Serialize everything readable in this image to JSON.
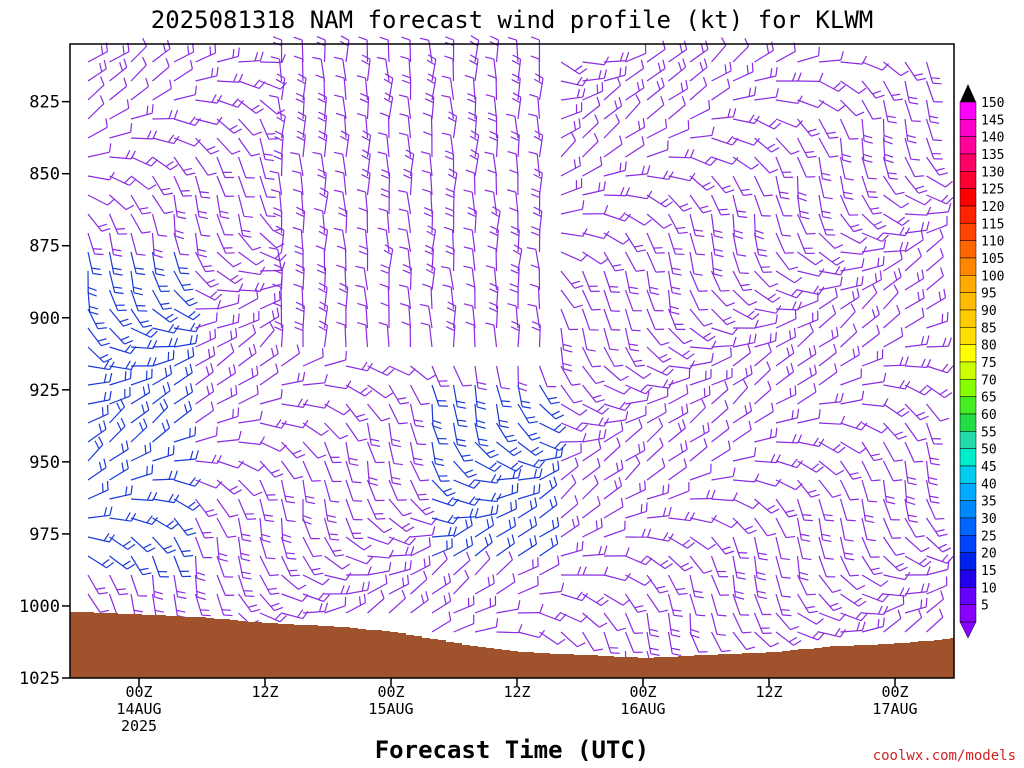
{
  "chart_data": {
    "type": "wind-barb-profile",
    "title": "2025081318 NAM forecast wind profile (kt) for KLWM",
    "xlabel": "Forecast Time (UTC)",
    "ylabel": "",
    "y_axis": {
      "unit": "hPa",
      "ticks": [
        "825",
        "850",
        "875",
        "900",
        "925",
        "950",
        "975",
        "1000",
        "1025"
      ],
      "range": [
        805,
        1025
      ]
    },
    "x_axis": {
      "range_hours": [
        -7,
        63
      ],
      "ticks": [
        {
          "hour": 0,
          "line1": "00Z",
          "line2": "14AUG",
          "line3": "2025"
        },
        {
          "hour": 12,
          "line1": "12Z",
          "line2": "",
          "line3": ""
        },
        {
          "hour": 24,
          "line1": "00Z",
          "line2": "15AUG",
          "line3": ""
        },
        {
          "hour": 36,
          "line1": "12Z",
          "line2": "",
          "line3": ""
        },
        {
          "hour": 48,
          "line1": "00Z",
          "line2": "16AUG",
          "line3": ""
        },
        {
          "hour": 60,
          "line1": "12Z",
          "line2": "",
          "line3": ""
        },
        {
          "hour": 72,
          "line1": "00Z",
          "line2": "17AUG",
          "line3": ""
        }
      ]
    },
    "colorbar": {
      "labels": [
        "150",
        "145",
        "140",
        "135",
        "130",
        "125",
        "120",
        "115",
        "110",
        "105",
        "100",
        "95",
        "90",
        "85",
        "80",
        "75",
        "70",
        "65",
        "60",
        "55",
        "50",
        "45",
        "40",
        "35",
        "30",
        "25",
        "20",
        "15",
        "10",
        "5"
      ],
      "colors": [
        "#ff00ff",
        "#ff00cc",
        "#ff0099",
        "#ff0066",
        "#ff0033",
        "#ff0000",
        "#ff2200",
        "#ff4400",
        "#ff6600",
        "#ff8800",
        "#ffaa00",
        "#ffbb00",
        "#ffcc00",
        "#ffdd00",
        "#ffff00",
        "#ccff00",
        "#88ff00",
        "#44ee22",
        "#22dd44",
        "#22ddaa",
        "#00eecc",
        "#00ccee",
        "#00aaff",
        "#0088ff",
        "#0066ff",
        "#0044ff",
        "#0022ee",
        "#2200ee",
        "#6600ff",
        "#8800ff"
      ]
    },
    "surface_pressure": [
      {
        "hour": -6,
        "p": 1002
      },
      {
        "hour": 0,
        "p": 1003
      },
      {
        "hour": 6,
        "p": 1004
      },
      {
        "hour": 12,
        "p": 1006
      },
      {
        "hour": 18,
        "p": 1007
      },
      {
        "hour": 24,
        "p": 1009
      },
      {
        "hour": 30,
        "p": 1013
      },
      {
        "hour": 36,
        "p": 1016
      },
      {
        "hour": 42,
        "p": 1017
      },
      {
        "hour": 48,
        "p": 1018
      },
      {
        "hour": 54,
        "p": 1017
      },
      {
        "hour": 60,
        "p": 1016
      },
      {
        "hour": 66,
        "p": 1014
      },
      {
        "hour": 72,
        "p": 1013
      },
      {
        "hour": 78,
        "p": 1011
      },
      {
        "hour": 82,
        "p": 1010
      }
    ]
  },
  "credit": "coolwx.com/models",
  "colors": {
    "ground": "#a0522d",
    "barb_light": "#8a2be2",
    "barb_strong": "#1a3ad8"
  }
}
